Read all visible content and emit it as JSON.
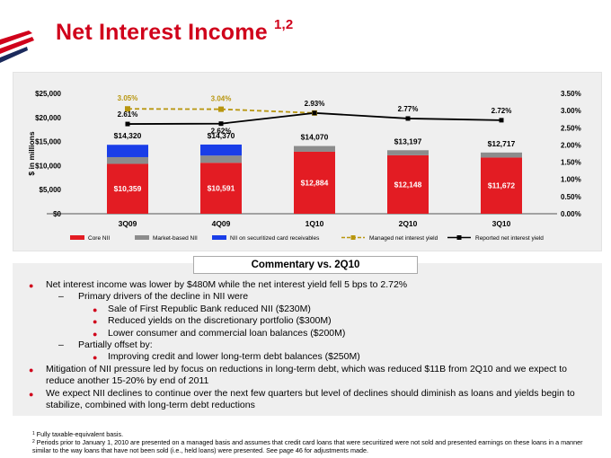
{
  "header": {
    "title": "Net Interest Income",
    "title_sup": "1,2"
  },
  "colors": {
    "brand_red": "#d0021b",
    "core_nii": "#e31c23",
    "market_based_nii": "#8c8c8c",
    "securitized": "#1a3ee8",
    "managed_yield": "#b8960f",
    "reported_yield": "#000000"
  },
  "chart_data": {
    "type": "bar",
    "categories": [
      "3Q09",
      "4Q09",
      "1Q10",
      "2Q10",
      "3Q10"
    ],
    "series": [
      {
        "name": "Core NII",
        "kind": "bar",
        "values": [
          10359,
          10591,
          12884,
          12148,
          11672
        ]
      },
      {
        "name": "Market-based NII",
        "kind": "bar",
        "values": [
          1400,
          1490,
          1186,
          1049,
          1045
        ]
      },
      {
        "name": "NII on securitized card receivables",
        "kind": "bar",
        "values": [
          2561,
          2289,
          null,
          null,
          null
        ]
      },
      {
        "name": "Managed net interest yield",
        "kind": "line",
        "axis": "right",
        "values": [
          3.05,
          3.04,
          2.93,
          null,
          null
        ]
      },
      {
        "name": "Reported net interest yield",
        "kind": "line",
        "axis": "right",
        "values": [
          2.61,
          2.62,
          2.93,
          2.77,
          2.72
        ]
      }
    ],
    "core_labels": [
      "$10,359",
      "$10,591",
      "$12,884",
      "$12,148",
      "$11,672"
    ],
    "total_labels": [
      "$14,320",
      "$14,370",
      "$14,070",
      "$13,197",
      "$12,717"
    ],
    "managed_yield_labels": [
      "3.05%",
      "3.04%",
      null,
      null,
      null
    ],
    "reported_yield_labels": [
      "2.61%",
      "2.62%",
      "2.93%",
      "2.77%",
      "2.72%"
    ],
    "ylabel": "$ in millions",
    "ylim": [
      0,
      25000
    ],
    "y2lim": [
      0.0,
      3.5
    ],
    "left_ticks": [
      "$0",
      "$5,000",
      "$10,000",
      "$15,000",
      "$20,000",
      "$25,000"
    ],
    "right_ticks": [
      "0.00%",
      "0.50%",
      "1.00%",
      "1.50%",
      "2.00%",
      "2.50%",
      "3.00%",
      "3.50%"
    ],
    "legend": [
      "Core NII",
      "Market-based NII",
      "NII on securitized card receivables",
      "Managed net interest yield",
      "Reported net interest yield"
    ],
    "legend_position": "bottom"
  },
  "commentary": {
    "title": "Commentary vs. 2Q10",
    "bullets": [
      {
        "level": 1,
        "text": "Net interest income was lower by $480M while the net interest yield fell 5 bps to 2.72%"
      },
      {
        "level": 2,
        "text": "Primary drivers of the decline in NII were"
      },
      {
        "level": 3,
        "text": "Sale of First Republic Bank reduced NII ($230M)"
      },
      {
        "level": 3,
        "text": "Reduced yields on the discretionary portfolio ($300M)"
      },
      {
        "level": 3,
        "text": "Lower consumer and commercial loan balances ($200M)"
      },
      {
        "level": 2,
        "text": "Partially offset by:"
      },
      {
        "level": 3,
        "text": "Improving credit and lower long-term debt balances ($250M)"
      },
      {
        "level": 1,
        "text": "Mitigation of NII pressure led by focus on reductions in long-term debt, which was reduced $11B from 2Q10 and we expect to reduce another 15-20% by end of 2011"
      },
      {
        "level": 1,
        "text": "We expect NII declines to continue over the next few quarters but level of declines should diminish as loans and yields begin to stabilize, combined with long-term debt reductions"
      }
    ]
  },
  "footnotes": [
    {
      "mark": "1",
      "text": "Fully taxable-equivalent basis."
    },
    {
      "mark": "2",
      "text": "Periods prior to January 1, 2010 are presented on a managed basis and assumes that credit card loans that were securitized were not sold and presented earnings on these loans in a manner similar to the way loans that have not been sold (i.e., held loans) were presented. See page 46 for adjustments made."
    }
  ]
}
